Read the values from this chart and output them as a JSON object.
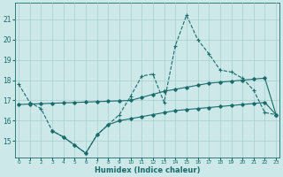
{
  "xlabel": "Humidex (Indice chaleur)",
  "bg_color": "#cce8e8",
  "line_color": "#1a6b6b",
  "x_data": [
    0,
    1,
    2,
    3,
    4,
    5,
    6,
    7,
    8,
    9,
    10,
    11,
    12,
    13,
    14,
    15,
    16,
    17,
    18,
    19,
    20,
    21,
    22,
    23
  ],
  "y1_data": [
    17.8,
    16.9,
    16.6,
    15.5,
    15.2,
    14.8,
    14.4,
    15.3,
    15.8,
    16.3,
    17.2,
    18.2,
    18.3,
    16.9,
    19.7,
    21.2,
    20.0,
    19.3,
    18.5,
    18.4,
    18.1,
    17.5,
    16.4,
    16.3
  ],
  "y2_data": [
    16.8,
    16.82,
    16.84,
    16.86,
    16.88,
    16.9,
    16.92,
    16.94,
    16.96,
    16.98,
    17.0,
    17.15,
    17.3,
    17.45,
    17.55,
    17.65,
    17.75,
    17.85,
    17.9,
    17.95,
    18.0,
    18.05,
    18.1,
    16.3
  ],
  "y3_data": [
    null,
    null,
    null,
    15.5,
    15.2,
    14.8,
    14.4,
    15.3,
    15.8,
    16.0,
    16.1,
    16.2,
    16.3,
    16.4,
    16.5,
    16.55,
    16.6,
    16.65,
    16.7,
    16.75,
    16.8,
    16.85,
    16.9,
    16.3
  ],
  "ylim": [
    14.2,
    21.8
  ],
  "xlim": [
    -0.3,
    23.3
  ],
  "yticks": [
    15,
    16,
    17,
    18,
    19,
    20,
    21
  ],
  "xtick_labels": [
    "0",
    "1",
    "2",
    "3",
    "4",
    "5",
    "6",
    "7",
    "8",
    "9",
    "10",
    "11",
    "12",
    "13",
    "14",
    "15",
    "16",
    "17",
    "18",
    "19",
    "20",
    "21",
    "22",
    "23"
  ]
}
